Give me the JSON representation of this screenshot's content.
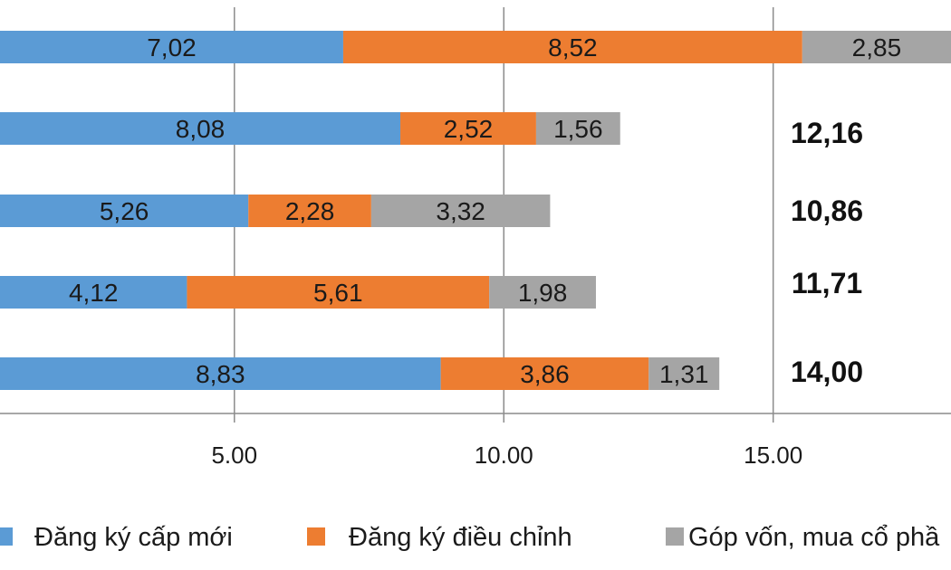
{
  "chart_data": {
    "type": "bar",
    "orientation": "horizontal",
    "stacked": true,
    "categories": [
      "",
      "",
      "",
      "",
      ""
    ],
    "series": [
      {
        "name": "Đăng ký cấp mới",
        "color": "#5b9bd5",
        "values": [
          7.02,
          8.08,
          5.26,
          4.12,
          8.83
        ],
        "labels": [
          "7,02",
          "8,08",
          "5,26",
          "4,12",
          "8,83"
        ]
      },
      {
        "name": "Đăng ký điều chỉnh",
        "color": "#ed7d31",
        "values": [
          8.52,
          2.52,
          2.28,
          5.61,
          3.86
        ],
        "labels": [
          "8,52",
          "2,52",
          "2,28",
          "5,61",
          "3,86"
        ]
      },
      {
        "name": "Góp vốn, mua cổ phầ",
        "color": "#a5a5a5",
        "values": [
          2.85,
          1.56,
          3.32,
          1.98,
          1.31
        ],
        "labels": [
          "2,85",
          "1,56",
          "3,32",
          "1,98",
          "1,31"
        ]
      }
    ],
    "totals": [
      "",
      "12,16",
      "10,86",
      "11,71",
      "14,00"
    ],
    "x_ticks": [
      "5.00",
      "10.00",
      "15.00"
    ],
    "x_tick_values": [
      5,
      10,
      15
    ],
    "xlim": [
      0.65,
      18.3
    ],
    "grid": true,
    "legend_position": "bottom"
  }
}
